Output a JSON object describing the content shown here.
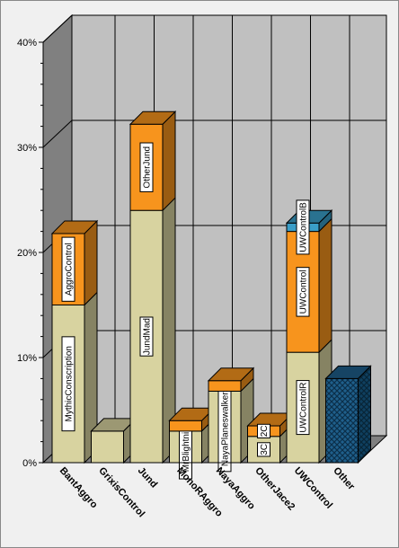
{
  "chart_data": {
    "type": "bar",
    "stacked": true,
    "style": "3d",
    "ylim": [
      0,
      40
    ],
    "yticks": [
      "0%",
      "10%",
      "20%",
      "30%",
      "40%"
    ],
    "grid": true,
    "categories": [
      "BantAggro",
      "GrixisControl",
      "Jund",
      "MonoRAggro",
      "NayaAggro",
      "OtherJace2",
      "UWControl",
      "Other"
    ],
    "stacks": [
      {
        "category": "BantAggro",
        "segments": [
          {
            "label": "MythicConscription",
            "value": 15.0,
            "color": "#d8d3a0"
          },
          {
            "label": "AggroControl",
            "value": 6.8,
            "color": "#f7941d"
          }
        ]
      },
      {
        "category": "GrixisControl",
        "segments": [
          {
            "label": "",
            "value": 3.0,
            "color": "#d8d3a0"
          }
        ]
      },
      {
        "category": "Jund",
        "segments": [
          {
            "label": "JundMad",
            "value": 24.0,
            "color": "#d8d3a0"
          },
          {
            "label": "OtherJund",
            "value": 8.2,
            "color": "#f7941d"
          }
        ]
      },
      {
        "category": "MonoRAggro",
        "segments": [
          {
            "label": "MrBlightning",
            "value": 3.0,
            "color": "#d8d3a0"
          },
          {
            "label": "",
            "value": 1.0,
            "color": "#f7941d"
          }
        ]
      },
      {
        "category": "NayaAggro",
        "segments": [
          {
            "label": "NayaPlaneswalkers",
            "value": 6.8,
            "color": "#d8d3a0"
          },
          {
            "label": "",
            "value": 1.0,
            "color": "#f7941d"
          }
        ]
      },
      {
        "category": "OtherJace2",
        "segments": [
          {
            "label": "3C",
            "value": 2.5,
            "color": "#d8d3a0"
          },
          {
            "label": "2C",
            "value": 1.0,
            "color": "#f7941d"
          }
        ]
      },
      {
        "category": "UWControl",
        "segments": [
          {
            "label": "UWControlR",
            "value": 10.5,
            "color": "#d8d3a0"
          },
          {
            "label": "UWControl",
            "value": 11.5,
            "color": "#f7941d"
          },
          {
            "label": "UWControlB",
            "value": 0.8,
            "color": "#3a9ec8"
          }
        ]
      },
      {
        "category": "Other",
        "segments": [
          {
            "label": "",
            "value": 8.0,
            "color": "#1f5f8b",
            "pattern": "crosshatch"
          }
        ]
      }
    ]
  }
}
